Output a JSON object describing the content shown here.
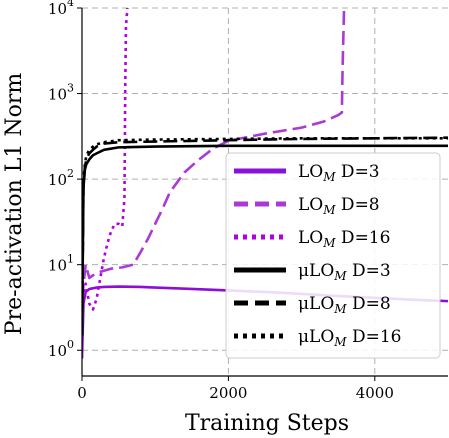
{
  "chart_data": {
    "type": "line",
    "xlabel": "Training Steps",
    "ylabel": "Pre-activation L1 Norm",
    "xscale": "linear",
    "yscale": "log",
    "xlim": [
      0,
      5000
    ],
    "ylim": [
      0.5,
      10000
    ],
    "grid": true,
    "legend_position": "lower-right",
    "x_ticks": [
      {
        "value": 0,
        "label": "0"
      },
      {
        "value": 2000,
        "label": "2000"
      },
      {
        "value": 4000,
        "label": "4000"
      }
    ],
    "y_ticks": [
      {
        "value": 1,
        "base": "10",
        "exp": "0"
      },
      {
        "value": 10,
        "base": "10",
        "exp": "1"
      },
      {
        "value": 100,
        "base": "10",
        "exp": "2"
      },
      {
        "value": 1000,
        "base": "10",
        "exp": "3"
      },
      {
        "value": 10000,
        "base": "10",
        "exp": "4"
      }
    ],
    "series": [
      {
        "prefix": "LO",
        "sub": "M",
        "suffix": " D=3",
        "color": "#8b0fd6",
        "dash": "solid",
        "x": [
          0,
          20,
          50,
          100,
          200,
          300,
          500,
          800,
          1000,
          1500,
          2000,
          2500,
          3000,
          3500,
          4000,
          4500,
          5000
        ],
        "y": [
          0.8,
          3.5,
          4.8,
          5.2,
          5.4,
          5.5,
          5.55,
          5.5,
          5.4,
          5.2,
          5.0,
          4.8,
          4.55,
          4.3,
          4.1,
          3.9,
          3.75
        ]
      },
      {
        "prefix": "LO",
        "sub": "M",
        "suffix": " D=8",
        "color": "#a93ad6",
        "dash": "dashed",
        "x": [
          0,
          50,
          100,
          150,
          200,
          300,
          400,
          550,
          700,
          800,
          900,
          1000,
          1100,
          1200,
          1400,
          1600,
          1800,
          2000,
          2500,
          3000,
          3300,
          3500,
          3550,
          3560,
          3580
        ],
        "y": [
          4,
          10,
          7,
          7.5,
          8,
          8.5,
          9,
          9.3,
          10,
          14,
          20,
          30,
          45,
          70,
          120,
          170,
          230,
          280,
          340,
          400,
          470,
          560,
          600,
          2000,
          10000
        ]
      },
      {
        "prefix": "LO",
        "sub": "M",
        "suffix": " D=16",
        "color": "#b300e0",
        "dash": "dotted",
        "x": [
          0,
          50,
          100,
          150,
          200,
          250,
          300,
          350,
          400,
          450,
          500,
          550,
          580,
          590,
          600,
          620
        ],
        "y": [
          4,
          6,
          3.5,
          3.0,
          4,
          7,
          12,
          18,
          25,
          30,
          30,
          28,
          60,
          1000,
          6000,
          10000
        ]
      },
      {
        "prefix": "μLO",
        "sub": "M",
        "suffix": " D=3",
        "color": "#000000",
        "dash": "solid",
        "x": [
          0,
          20,
          40,
          60,
          100,
          150,
          200,
          300,
          500,
          1000,
          2000,
          3000,
          4000,
          5000
        ],
        "y": [
          1.5,
          80,
          130,
          150,
          170,
          190,
          200,
          220,
          235,
          240,
          245,
          245,
          245,
          245
        ]
      },
      {
        "prefix": "μLO",
        "sub": "M",
        "suffix": " D=8",
        "color": "#000000",
        "dash": "dashed",
        "x": [
          0,
          20,
          40,
          60,
          100,
          150,
          200,
          300,
          500,
          1000,
          2000,
          3000,
          4000,
          5000
        ],
        "y": [
          1.5,
          90,
          140,
          170,
          200,
          220,
          240,
          260,
          270,
          275,
          285,
          295,
          300,
          305
        ]
      },
      {
        "prefix": "μLO",
        "sub": "M",
        "suffix": " D=16",
        "color": "#000000",
        "dash": "dotted",
        "x": [
          0,
          20,
          40,
          60,
          100,
          150,
          200,
          300,
          500,
          1000,
          2000,
          3000,
          4000,
          5000
        ],
        "y": [
          1.5,
          100,
          150,
          190,
          220,
          240,
          255,
          270,
          285,
          290,
          295,
          300,
          300,
          300
        ]
      }
    ]
  }
}
